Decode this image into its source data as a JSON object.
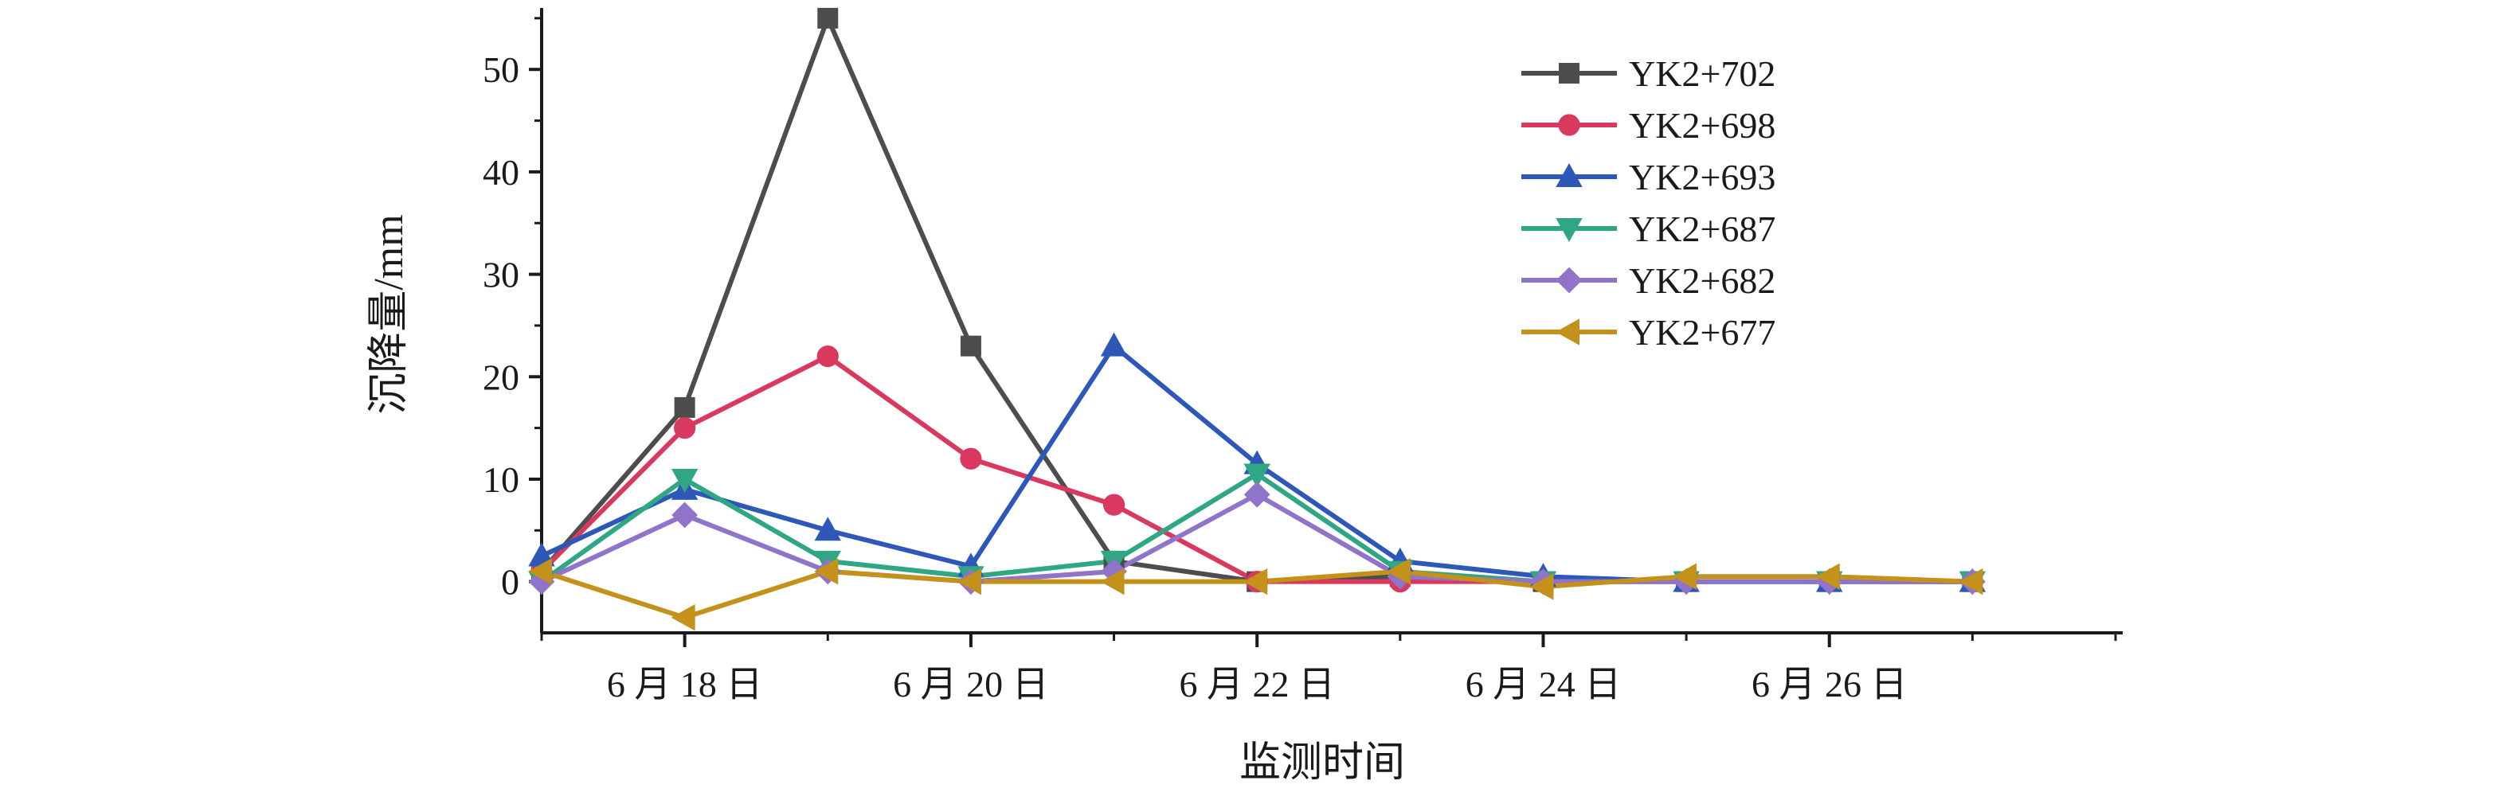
{
  "chart_data": {
    "type": "line",
    "title": "",
    "xlabel": "监测时间",
    "ylabel": "沉降量/mm",
    "x_tick_labels": [
      "6 月 18 日",
      "6 月 20 日",
      "6 月 22 日",
      "6 月 24 日",
      "6 月 26 日"
    ],
    "x_tick_positions": [
      18,
      20,
      22,
      24,
      26
    ],
    "xlim": [
      17,
      28.05
    ],
    "y_ticks": [
      0,
      10,
      20,
      30,
      40,
      50
    ],
    "ylim": [
      -5,
      56
    ],
    "grid": false,
    "legend_position": "top-right",
    "x": [
      17,
      18,
      19,
      20,
      21,
      22,
      23,
      24,
      25,
      26,
      27
    ],
    "series": [
      {
        "name": "YK2+702",
        "color": "#4d4d4d",
        "marker": "square",
        "values": [
          1.0,
          17.0,
          55.0,
          23.0,
          2.0,
          0.0,
          0.5,
          0.0,
          0.0,
          0.0,
          0.0
        ]
      },
      {
        "name": "YK2+698",
        "color": "#d9395e",
        "marker": "circle",
        "values": [
          1.0,
          15.0,
          22.0,
          12.0,
          7.5,
          0.0,
          0.0,
          0.0,
          0.0,
          0.0,
          0.0
        ]
      },
      {
        "name": "YK2+693",
        "color": "#2d58b8",
        "marker": "triangle-up",
        "values": [
          2.5,
          9.0,
          5.0,
          1.5,
          23.0,
          11.5,
          2.0,
          0.5,
          0.0,
          0.0,
          0.0
        ]
      },
      {
        "name": "YK2+687",
        "color": "#2fa784",
        "marker": "triangle-down",
        "values": [
          0.0,
          10.0,
          2.0,
          0.5,
          2.0,
          10.5,
          1.0,
          0.0,
          0.0,
          0.0,
          0.0
        ]
      },
      {
        "name": "YK2+682",
        "color": "#8f74c9",
        "marker": "diamond",
        "values": [
          0.0,
          6.5,
          1.0,
          0.0,
          1.0,
          8.5,
          0.5,
          0.0,
          0.0,
          0.0,
          0.0
        ]
      },
      {
        "name": "YK2+677",
        "color": "#c4921a",
        "marker": "triangle-left",
        "values": [
          1.0,
          -3.5,
          1.0,
          0.0,
          0.0,
          0.0,
          1.0,
          -0.5,
          0.5,
          0.5,
          0.0
        ]
      }
    ]
  }
}
